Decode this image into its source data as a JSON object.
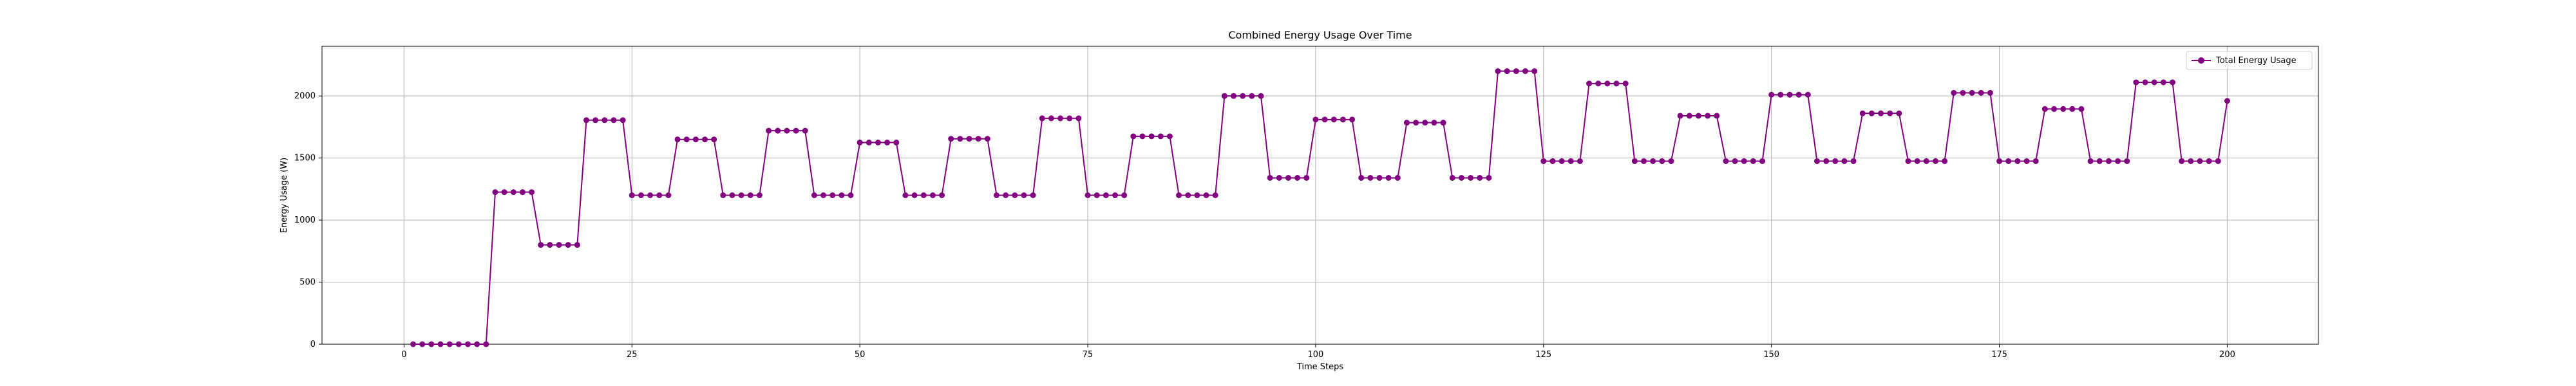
{
  "chart_data": {
    "type": "line",
    "title": "Combined Energy Usage Over Time",
    "xlabel": "Time Steps",
    "ylabel": "Energy Usage (W)",
    "xlim": [
      -9,
      210
    ],
    "ylim": [
      0,
      2400
    ],
    "xticks": [
      0,
      25,
      50,
      75,
      100,
      125,
      150,
      175,
      200
    ],
    "yticks": [
      0,
      500,
      1000,
      1500,
      2000
    ],
    "grid": true,
    "legend_position": "top-right",
    "series": [
      {
        "name": "Total Energy Usage",
        "color": "#800080",
        "x_start": 1,
        "x_step": 1,
        "values": [
          0,
          0,
          0,
          0,
          0,
          0,
          0,
          0,
          0,
          1225,
          1225,
          1225,
          1225,
          1225,
          800,
          800,
          800,
          800,
          800,
          1805,
          1805,
          1805,
          1805,
          1805,
          1200,
          1200,
          1200,
          1200,
          1200,
          1650,
          1650,
          1650,
          1650,
          1650,
          1200,
          1200,
          1200,
          1200,
          1200,
          1720,
          1720,
          1720,
          1720,
          1720,
          1200,
          1200,
          1200,
          1200,
          1200,
          1625,
          1625,
          1625,
          1625,
          1625,
          1200,
          1200,
          1200,
          1200,
          1200,
          1655,
          1655,
          1655,
          1655,
          1655,
          1200,
          1200,
          1200,
          1200,
          1200,
          1820,
          1820,
          1820,
          1820,
          1820,
          1200,
          1200,
          1200,
          1200,
          1200,
          1675,
          1675,
          1675,
          1675,
          1675,
          1200,
          1200,
          1200,
          1200,
          1200,
          2000,
          2000,
          2000,
          2000,
          2000,
          1340,
          1340,
          1340,
          1340,
          1340,
          1810,
          1810,
          1810,
          1810,
          1810,
          1340,
          1340,
          1340,
          1340,
          1340,
          1785,
          1785,
          1785,
          1785,
          1785,
          1340,
          1340,
          1340,
          1340,
          1340,
          2200,
          2200,
          2200,
          2200,
          2200,
          1475,
          1475,
          1475,
          1475,
          1475,
          2100,
          2100,
          2100,
          2100,
          2100,
          1475,
          1475,
          1475,
          1475,
          1475,
          1840,
          1840,
          1840,
          1840,
          1840,
          1475,
          1475,
          1475,
          1475,
          1475,
          2010,
          2010,
          2010,
          2010,
          2010,
          1475,
          1475,
          1475,
          1475,
          1475,
          1860,
          1860,
          1860,
          1860,
          1860,
          1475,
          1475,
          1475,
          1475,
          1475,
          2025,
          2025,
          2025,
          2025,
          2025,
          1475,
          1475,
          1475,
          1475,
          1475,
          1895,
          1895,
          1895,
          1895,
          1895,
          1475,
          1475,
          1475,
          1475,
          1475,
          2110,
          2110,
          2110,
          2110,
          2110,
          1475,
          1475,
          1475,
          1475,
          1475,
          1960
        ]
      }
    ]
  }
}
